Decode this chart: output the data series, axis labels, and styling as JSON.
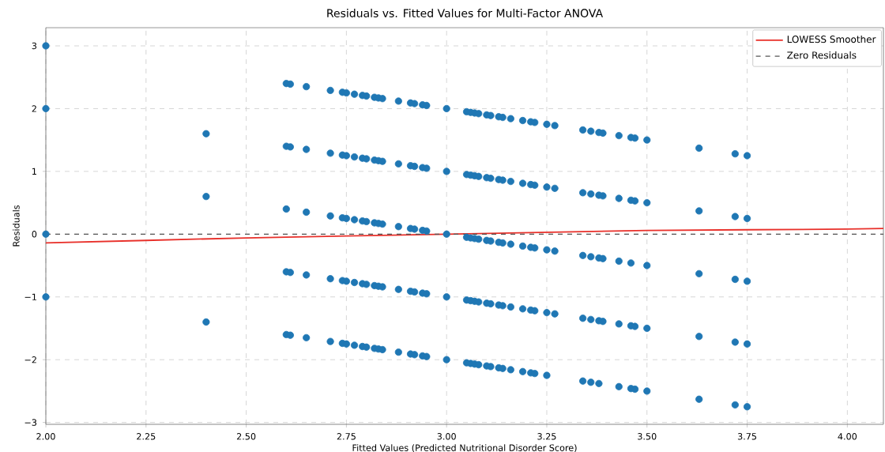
{
  "chart_data": {
    "type": "scatter",
    "title": "Residuals vs. Fitted Values for Multi-Factor ANOVA",
    "xlabel": "Fitted Values (Predicted Nutritional Disorder Score)",
    "ylabel": "Residuals",
    "xlim": [
      2.0,
      4.09
    ],
    "ylim": [
      -3.03,
      3.29
    ],
    "xticks": [
      {
        "value": 2.0,
        "label": "2.00"
      },
      {
        "value": 2.25,
        "label": "2.25"
      },
      {
        "value": 2.5,
        "label": "2.50"
      },
      {
        "value": 2.75,
        "label": "2.75"
      },
      {
        "value": 3.0,
        "label": "3.00"
      },
      {
        "value": 3.25,
        "label": "3.25"
      },
      {
        "value": 3.5,
        "label": "3.50"
      },
      {
        "value": 3.75,
        "label": "3.75"
      },
      {
        "value": 4.0,
        "label": "4.00"
      }
    ],
    "yticks": [
      {
        "value": -3,
        "label": "−3"
      },
      {
        "value": -2,
        "label": "−2"
      },
      {
        "value": -1,
        "label": "−1"
      },
      0,
      1,
      2,
      3
    ],
    "grid": true,
    "legend": "top right",
    "marker": "circle",
    "series": [
      {
        "color": "#1f77b4",
        "x": [
          2.0,
          2.6,
          2.61,
          2.65,
          2.71,
          2.74,
          2.75,
          2.77,
          2.79,
          2.8,
          2.82,
          2.83,
          2.84,
          2.88,
          2.91,
          2.92,
          2.94,
          2.95,
          3.0,
          3.05,
          3.06,
          3.07,
          3.08,
          3.1,
          3.11,
          3.13,
          3.14,
          3.16,
          3.19,
          3.21,
          3.22,
          3.25,
          3.27,
          3.34,
          3.36,
          3.38,
          3.39,
          3.43,
          3.46,
          3.47,
          3.5,
          3.63,
          3.72,
          3.75
        ],
        "values": [
          3.0,
          2.4,
          2.39,
          2.35,
          2.29,
          2.26,
          2.25,
          2.23,
          2.21,
          2.2,
          2.18,
          2.17,
          2.16,
          2.12,
          2.09,
          2.08,
          2.06,
          2.05,
          2.0,
          1.95,
          1.94,
          1.93,
          1.92,
          1.9,
          1.89,
          1.87,
          1.86,
          1.84,
          1.81,
          1.79,
          1.78,
          1.75,
          1.73,
          1.66,
          1.64,
          1.62,
          1.61,
          1.57,
          1.54,
          1.53,
          1.5,
          1.37,
          1.28,
          1.25
        ]
      },
      {
        "color": "#1f77b4",
        "x": [
          2.0,
          2.4,
          2.6,
          2.61,
          2.65,
          2.71,
          2.74,
          2.75,
          2.77,
          2.79,
          2.8,
          2.82,
          2.83,
          2.84,
          2.88,
          2.91,
          2.92,
          2.94,
          2.95,
          3.0,
          3.05,
          3.06,
          3.07,
          3.08,
          3.1,
          3.11,
          3.13,
          3.14,
          3.16,
          3.19,
          3.21,
          3.22,
          3.25,
          3.27,
          3.34,
          3.36,
          3.38,
          3.39,
          3.43,
          3.46,
          3.47,
          3.5,
          3.63,
          3.72,
          3.75
        ],
        "values": [
          2.0,
          1.6,
          1.4,
          1.39,
          1.35,
          1.29,
          1.26,
          1.25,
          1.23,
          1.21,
          1.2,
          1.18,
          1.17,
          1.16,
          1.12,
          1.09,
          1.08,
          1.06,
          1.05,
          1.0,
          0.95,
          0.94,
          0.93,
          0.92,
          0.9,
          0.89,
          0.87,
          0.86,
          0.84,
          0.81,
          0.79,
          0.78,
          0.75,
          0.73,
          0.66,
          0.64,
          0.62,
          0.61,
          0.57,
          0.54,
          0.53,
          0.5,
          0.37,
          0.28,
          0.25
        ]
      },
      {
        "color": "#1f77b4",
        "x": [
          2.4,
          2.6,
          2.65,
          2.71,
          2.74,
          2.75,
          2.77,
          2.79,
          2.8,
          2.82,
          2.83,
          2.84,
          2.88,
          2.91,
          2.92,
          2.94,
          2.95,
          3.0,
          3.05,
          3.06,
          3.07,
          3.08,
          3.1,
          3.11,
          3.13,
          3.14,
          3.16,
          3.19,
          3.21,
          3.22,
          3.25,
          3.27,
          3.34,
          3.36,
          3.38,
          3.39,
          3.43,
          3.46,
          3.5,
          3.63,
          3.72,
          3.75
        ],
        "values": [
          0.6,
          0.4,
          0.35,
          0.29,
          0.26,
          0.25,
          0.23,
          0.21,
          0.2,
          0.18,
          0.17,
          0.16,
          0.12,
          0.09,
          0.08,
          0.06,
          0.05,
          0.0,
          -0.05,
          -0.06,
          -0.07,
          -0.08,
          -0.1,
          -0.11,
          -0.13,
          -0.14,
          -0.16,
          -0.19,
          -0.21,
          -0.22,
          -0.25,
          -0.27,
          -0.34,
          -0.36,
          -0.38,
          -0.39,
          -0.43,
          -0.46,
          -0.5,
          -0.63,
          -0.72,
          -0.75
        ]
      },
      {
        "color": "#1f77b4",
        "x": [
          2.0,
          2.6,
          2.61,
          2.65,
          2.71,
          2.74,
          2.75,
          2.77,
          2.79,
          2.8,
          2.82,
          2.83,
          2.84,
          2.88,
          2.91,
          2.92,
          2.94,
          2.95,
          3.0,
          3.05,
          3.06,
          3.07,
          3.08,
          3.1,
          3.11,
          3.13,
          3.14,
          3.16,
          3.19,
          3.21,
          3.22,
          3.25,
          3.27,
          3.34,
          3.36,
          3.38,
          3.39,
          3.43,
          3.46,
          3.47,
          3.5,
          3.63,
          3.72,
          3.75
        ],
        "values": [
          0.0,
          -0.6,
          -0.61,
          -0.65,
          -0.71,
          -0.74,
          -0.75,
          -0.77,
          -0.79,
          -0.8,
          -0.82,
          -0.83,
          -0.84,
          -0.88,
          -0.91,
          -0.92,
          -0.94,
          -0.95,
          -1.0,
          -1.05,
          -1.06,
          -1.07,
          -1.08,
          -1.1,
          -1.11,
          -1.13,
          -1.14,
          -1.16,
          -1.19,
          -1.21,
          -1.22,
          -1.25,
          -1.27,
          -1.34,
          -1.36,
          -1.38,
          -1.39,
          -1.43,
          -1.46,
          -1.47,
          -1.5,
          -1.63,
          -1.72,
          -1.75
        ]
      },
      {
        "color": "#1f77b4",
        "x": [
          2.0,
          2.4,
          2.6,
          2.61,
          2.65,
          2.71,
          2.74,
          2.75,
          2.77,
          2.79,
          2.8,
          2.82,
          2.83,
          2.84,
          2.88,
          2.91,
          2.92,
          2.94,
          2.95,
          3.0,
          3.05,
          3.06,
          3.07,
          3.08,
          3.1,
          3.11,
          3.13,
          3.14,
          3.16,
          3.19,
          3.21,
          3.22,
          3.25,
          3.34,
          3.36,
          3.38,
          3.43,
          3.46,
          3.47,
          3.5,
          3.63,
          3.72,
          3.75
        ],
        "values": [
          -1.0,
          -1.4,
          -1.6,
          -1.61,
          -1.65,
          -1.71,
          -1.74,
          -1.75,
          -1.77,
          -1.79,
          -1.8,
          -1.82,
          -1.83,
          -1.84,
          -1.88,
          -1.91,
          -1.92,
          -1.94,
          -1.95,
          -2.0,
          -2.05,
          -2.06,
          -2.07,
          -2.08,
          -2.1,
          -2.11,
          -2.13,
          -2.14,
          -2.16,
          -2.19,
          -2.21,
          -2.22,
          -2.25,
          -2.34,
          -2.36,
          -2.38,
          -2.43,
          -2.46,
          -2.47,
          -2.5,
          -2.63,
          -2.72,
          -2.75
        ]
      },
      {
        "type": "line",
        "name": "LOWESS Smoother",
        "color": "#e8302a",
        "marker": "none",
        "x": [
          2.0,
          2.25,
          2.5,
          2.75,
          3.0,
          3.25,
          3.5,
          3.75,
          4.0,
          4.09
        ],
        "values": [
          -0.14,
          -0.1,
          -0.06,
          -0.03,
          0.0,
          0.03,
          0.06,
          0.07,
          0.08,
          0.09
        ]
      }
    ],
    "ref_lines": [
      {
        "axis": "y",
        "value": 0,
        "label": "Zero Residuals",
        "color": "#555555",
        "line_style": "dashed"
      }
    ]
  }
}
